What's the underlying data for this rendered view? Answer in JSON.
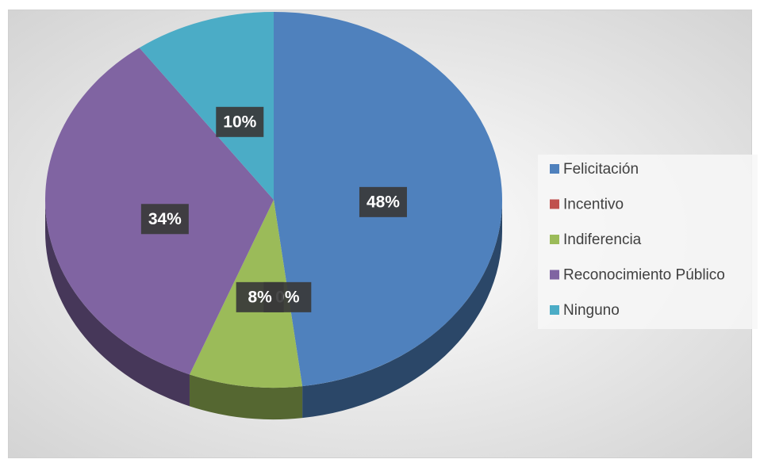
{
  "chart_data": {
    "type": "pie",
    "categories": [
      "Felicitación",
      "Incentivo",
      "Indiferencia",
      "Reconocimiento Público",
      "Ninguno"
    ],
    "values": [
      48,
      0,
      8,
      34,
      10
    ],
    "value_labels": [
      "48%",
      "0%",
      "8%",
      "34%",
      "10%"
    ],
    "colors": [
      "#4f81bd",
      "#c0504d",
      "#9bbb59",
      "#8064a2",
      "#4bacc6"
    ],
    "legend": "right"
  }
}
